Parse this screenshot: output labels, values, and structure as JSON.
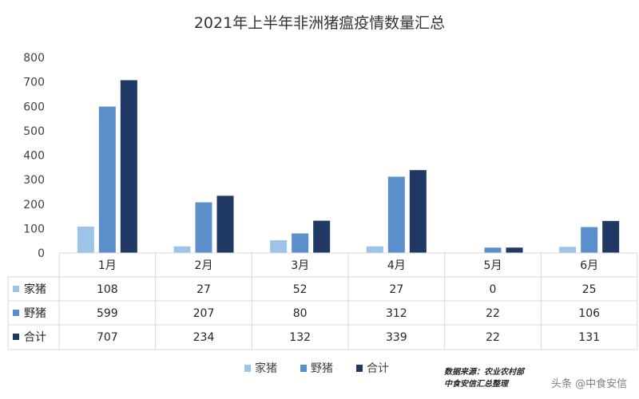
{
  "chart_data": {
    "type": "bar",
    "title": "2021年上半年非洲猪瘟疫情数量汇总",
    "categories": [
      "1月",
      "2月",
      "3月",
      "4月",
      "5月",
      "6月"
    ],
    "series": [
      {
        "name": "家猪",
        "values": [
          108,
          27,
          52,
          27,
          0,
          25
        ],
        "color": "#9dc3e6"
      },
      {
        "name": "野猪",
        "values": [
          599,
          207,
          80,
          312,
          22,
          106
        ],
        "color": "#5b8fcc"
      },
      {
        "name": "合计",
        "values": [
          707,
          234,
          132,
          339,
          22,
          131
        ],
        "color": "#1f3864"
      }
    ],
    "ylim": [
      0,
      800
    ],
    "yticks": [
      0,
      100,
      200,
      300,
      400,
      500,
      600,
      700,
      800
    ],
    "grid": false,
    "legend": "bottom",
    "data_table": true
  },
  "source": {
    "line1": "数据来源：农业农村部",
    "line2": "中食安信汇总整理"
  },
  "watermark": "头条 @中食安信"
}
